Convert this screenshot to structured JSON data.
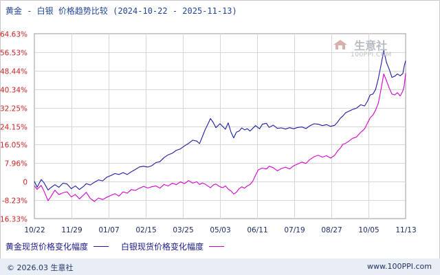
{
  "title": "黄金 - 白银 价格趋势比较 (2024-10-22 - 2025-11-13)",
  "watermark": {
    "name": "生意社",
    "url": "100PPI.COM"
  },
  "footer": {
    "left": "© 2026.03 生意社",
    "right": "www.100PPI.com"
  },
  "colors": {
    "gold": "#1a1aa6",
    "silver": "#d400cc",
    "axis_label": "#cc2222",
    "grid": "#d6d6d6"
  },
  "chart_data": {
    "type": "line",
    "title": "黄金 - 白银 价格趋势比较 (2024-10-22 - 2025-11-13)",
    "xlabel": "",
    "ylabel": "",
    "ylim": [
      -16.33,
      64.63
    ],
    "y_ticks": [
      64.63,
      56.53,
      48.44,
      40.34,
      32.25,
      24.15,
      16.05,
      7.96,
      0,
      -8.23,
      -16.33
    ],
    "y_tick_labels": [
      "64.63%",
      "56.53%",
      "48.44%",
      "40.34%",
      "32.25%",
      "24.15%",
      "16.05%",
      "7.96%",
      "0",
      "-8.23%",
      "-16.33%"
    ],
    "x_ticks": [
      "10/22",
      "11/29",
      "01/07",
      "02/15",
      "03/25",
      "05/03",
      "06/11",
      "07/19",
      "08/27",
      "10/05",
      "11/13"
    ],
    "grid": true,
    "legend_position": "bottom",
    "series": [
      {
        "name": "黄金现货价格变化幅度",
        "color": "#1a1aa6",
        "points": [
          [
            0,
            0
          ],
          [
            2,
            -2.6
          ],
          [
            5,
            0.8
          ],
          [
            7,
            -0.6
          ],
          [
            10,
            -3.8
          ],
          [
            12,
            -2.8
          ],
          [
            15,
            -1.5
          ],
          [
            18,
            -2.6
          ],
          [
            21,
            -0.8
          ],
          [
            24,
            -1.2
          ],
          [
            27,
            -3.2
          ],
          [
            30,
            -2.0
          ],
          [
            33,
            -3.6
          ],
          [
            36,
            -2.2
          ],
          [
            38,
            -1.0
          ],
          [
            41,
            -1.6
          ],
          [
            44,
            -0.4
          ],
          [
            47,
            0.6
          ],
          [
            50,
            0.2
          ],
          [
            53,
            1.8
          ],
          [
            56,
            2.5
          ],
          [
            59,
            3.4
          ],
          [
            62,
            3.0
          ],
          [
            65,
            3.8
          ],
          [
            68,
            3.0
          ],
          [
            71,
            4.2
          ],
          [
            74,
            5.2
          ],
          [
            77,
            6.3
          ],
          [
            80,
            6.6
          ],
          [
            83,
            6.2
          ],
          [
            86,
            6.8
          ],
          [
            89,
            8.2
          ],
          [
            92,
            8.6
          ],
          [
            95,
            10.4
          ],
          [
            98,
            11.6
          ],
          [
            101,
            12.3
          ],
          [
            104,
            13.6
          ],
          [
            107,
            14.2
          ],
          [
            110,
            15.5
          ],
          [
            113,
            16.6
          ],
          [
            116,
            18.0
          ],
          [
            119,
            17.6
          ],
          [
            121,
            16.5
          ],
          [
            123,
            19.4
          ],
          [
            125,
            22.5
          ],
          [
            127,
            24.8
          ],
          [
            129,
            27.5
          ],
          [
            131,
            25.8
          ],
          [
            133,
            23.5
          ],
          [
            136,
            25.2
          ],
          [
            138,
            24.0
          ],
          [
            140,
            22.8
          ],
          [
            142,
            25.6
          ],
          [
            144,
            21.6
          ],
          [
            146,
            19.0
          ],
          [
            148,
            21.5
          ],
          [
            150,
            22.0
          ],
          [
            152,
            23.4
          ],
          [
            154,
            22.5
          ],
          [
            156,
            23.0
          ],
          [
            158,
            22.0
          ],
          [
            160,
            23.2
          ],
          [
            162,
            24.4
          ],
          [
            165,
            23.0
          ],
          [
            167,
            25.0
          ],
          [
            170,
            25.4
          ],
          [
            172,
            23.6
          ],
          [
            175,
            24.6
          ],
          [
            178,
            23.2
          ],
          [
            181,
            23.4
          ],
          [
            184,
            22.9
          ],
          [
            187,
            23.5
          ],
          [
            190,
            23.0
          ],
          [
            193,
            23.6
          ],
          [
            196,
            23.8
          ],
          [
            199,
            23.1
          ],
          [
            202,
            24.4
          ],
          [
            205,
            25.2
          ],
          [
            208,
            25.0
          ],
          [
            211,
            24.4
          ],
          [
            214,
            24.8
          ],
          [
            217,
            24.1
          ],
          [
            220,
            24.5
          ],
          [
            222,
            25.8
          ],
          [
            224,
            27.5
          ],
          [
            226,
            28.6
          ],
          [
            228,
            30.0
          ],
          [
            230,
            30.6
          ],
          [
            233,
            31.4
          ],
          [
            236,
            32.0
          ],
          [
            239,
            33.5
          ],
          [
            242,
            33.0
          ],
          [
            244,
            35.0
          ],
          [
            246,
            37.8
          ],
          [
            248,
            38.2
          ],
          [
            250,
            40.2
          ],
          [
            252,
            45.0
          ],
          [
            254,
            51.0
          ],
          [
            256,
            57.3
          ],
          [
            258,
            52.0
          ],
          [
            260,
            49.0
          ],
          [
            262,
            45.5
          ],
          [
            264,
            46.0
          ],
          [
            266,
            47.0
          ],
          [
            268,
            46.2
          ],
          [
            270,
            47.2
          ],
          [
            271,
            50.5
          ],
          [
            272,
            52.8
          ]
        ]
      },
      {
        "name": "白银现货价格变化幅度",
        "color": "#d400cc",
        "points": [
          [
            0,
            -2.0
          ],
          [
            2,
            -3.5
          ],
          [
            5,
            -1.8
          ],
          [
            7,
            -4.2
          ],
          [
            10,
            -8.5
          ],
          [
            12,
            -6.8
          ],
          [
            15,
            -3.9
          ],
          [
            18,
            -5.8
          ],
          [
            21,
            -5.0
          ],
          [
            24,
            -4.6
          ],
          [
            27,
            -6.8
          ],
          [
            30,
            -5.8
          ],
          [
            33,
            -7.7
          ],
          [
            36,
            -6.0
          ],
          [
            38,
            -4.8
          ],
          [
            41,
            -7.5
          ],
          [
            44,
            -8.8
          ],
          [
            47,
            -7.3
          ],
          [
            50,
            -8.0
          ],
          [
            53,
            -7.0
          ],
          [
            56,
            -6.2
          ],
          [
            59,
            -5.4
          ],
          [
            62,
            -6.5
          ],
          [
            65,
            -4.6
          ],
          [
            68,
            -5.2
          ],
          [
            71,
            -3.6
          ],
          [
            74,
            -4.0
          ],
          [
            77,
            -3.0
          ],
          [
            80,
            -2.2
          ],
          [
            83,
            -2.9
          ],
          [
            86,
            -2.4
          ],
          [
            89,
            -2.0
          ],
          [
            92,
            -3.0
          ],
          [
            95,
            -1.4
          ],
          [
            98,
            -2.0
          ],
          [
            101,
            -0.8
          ],
          [
            104,
            -1.5
          ],
          [
            107,
            -0.2
          ],
          [
            110,
            -1.0
          ],
          [
            113,
            0.3
          ],
          [
            116,
            -0.8
          ],
          [
            119,
            -0.2
          ],
          [
            121,
            -1.4
          ],
          [
            123,
            -0.7
          ],
          [
            125,
            -1.2
          ],
          [
            127,
            -2.0
          ],
          [
            129,
            -2.8
          ],
          [
            131,
            -1.6
          ],
          [
            133,
            -1.2
          ],
          [
            136,
            -2.4
          ],
          [
            138,
            -2.8
          ],
          [
            140,
            -2.0
          ],
          [
            142,
            -3.4
          ],
          [
            144,
            -4.2
          ],
          [
            146,
            -5.6
          ],
          [
            148,
            -4.8
          ],
          [
            150,
            -3.2
          ],
          [
            152,
            -2.4
          ],
          [
            154,
            -3.0
          ],
          [
            156,
            -2.0
          ],
          [
            158,
            -1.4
          ],
          [
            160,
            0.0
          ],
          [
            162,
            2.6
          ],
          [
            164,
            5.0
          ],
          [
            167,
            5.8
          ],
          [
            170,
            5.4
          ],
          [
            172,
            6.6
          ],
          [
            175,
            6.0
          ],
          [
            178,
            4.6
          ],
          [
            181,
            5.6
          ],
          [
            184,
            6.2
          ],
          [
            187,
            5.4
          ],
          [
            190,
            6.8
          ],
          [
            193,
            7.6
          ],
          [
            196,
            8.4
          ],
          [
            199,
            7.8
          ],
          [
            202,
            9.6
          ],
          [
            205,
            10.8
          ],
          [
            208,
            11.4
          ],
          [
            211,
            10.6
          ],
          [
            214,
            11.2
          ],
          [
            217,
            10.2
          ],
          [
            220,
            11.4
          ],
          [
            222,
            13.2
          ],
          [
            224,
            14.4
          ],
          [
            226,
            16.2
          ],
          [
            228,
            16.6
          ],
          [
            230,
            17.4
          ],
          [
            233,
            18.8
          ],
          [
            236,
            19.4
          ],
          [
            239,
            21.4
          ],
          [
            242,
            23.0
          ],
          [
            244,
            25.4
          ],
          [
            246,
            27.8
          ],
          [
            248,
            29.0
          ],
          [
            250,
            31.2
          ],
          [
            252,
            34.2
          ],
          [
            254,
            40.4
          ],
          [
            256,
            47.0
          ],
          [
            258,
            44.0
          ],
          [
            260,
            40.8
          ],
          [
            262,
            38.2
          ],
          [
            264,
            37.8
          ],
          [
            266,
            38.8
          ],
          [
            268,
            37.4
          ],
          [
            270,
            39.6
          ],
          [
            271,
            42.0
          ],
          [
            272,
            47.3
          ]
        ]
      }
    ]
  }
}
